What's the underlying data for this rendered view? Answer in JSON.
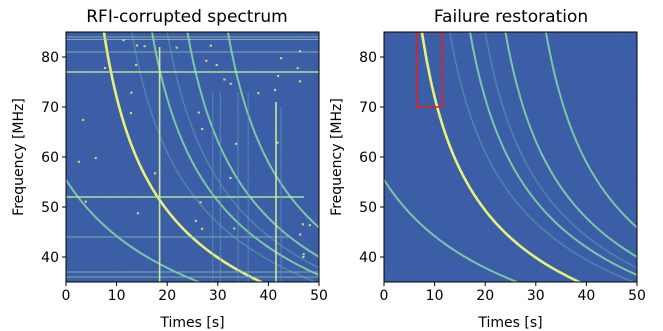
{
  "chart_data": [
    {
      "type": "heatmap",
      "title": "RFI-corrupted spectrum",
      "xlabel": "Times [s]",
      "ylabel": "Frequency [MHz]",
      "xlim": [
        0,
        50
      ],
      "ylim": [
        35,
        85
      ],
      "xticks": [
        0,
        10,
        20,
        30,
        40,
        50
      ],
      "yticks": [
        40,
        50,
        60,
        70,
        80
      ],
      "colors": {
        "background": "#3c5ea6",
        "signal": "#e6f07a",
        "faint": "#4f8fb0"
      },
      "dispersed_pulses": [
        {
          "time_at_top": 7.5,
          "time_at_50MHz": 19.5,
          "intensity": "strong"
        },
        {
          "time_at_top": 17,
          "time_at_50MHz": 31,
          "intensity": "medium"
        },
        {
          "time_at_top": 24,
          "time_at_50MHz": 38,
          "intensity": "medium"
        },
        {
          "time_at_top": 32,
          "time_at_50MHz": 46,
          "intensity": "medium"
        },
        {
          "time_at_top": -10,
          "time_at_50MHz": 4,
          "intensity": "medium"
        },
        {
          "time_at_top": 13,
          "time_at_50MHz": 27,
          "intensity": "faint"
        },
        {
          "time_at_top": 20,
          "time_at_50MHz": 34,
          "intensity": "faint"
        }
      ],
      "rfi_horizontal_MHz": [
        84,
        83.5,
        81,
        77,
        52,
        44,
        37,
        36
      ],
      "rfi_vertical_s": [
        18.5,
        41.5,
        42.5,
        29,
        30.5,
        34,
        36
      ]
    },
    {
      "type": "heatmap",
      "title": "Failure restoration",
      "xlabel": "Times [s]",
      "ylabel": "Frequency [MHz]",
      "xlim": [
        0,
        50
      ],
      "ylim": [
        35,
        85
      ],
      "xticks": [
        0,
        10,
        20,
        30,
        40,
        50
      ],
      "yticks": [
        40,
        50,
        60,
        70,
        80
      ],
      "colors": {
        "background": "#3c5ea6",
        "signal": "#e6f07a",
        "faint": "#4f8fb0",
        "highlight_box": "#e0201b"
      },
      "dispersed_pulses": [
        {
          "time_at_top": 7.5,
          "time_at_50MHz": 19.5,
          "intensity": "strong"
        },
        {
          "time_at_top": 17,
          "time_at_50MHz": 31,
          "intensity": "medium"
        },
        {
          "time_at_top": 24,
          "time_at_50MHz": 38,
          "intensity": "medium"
        },
        {
          "time_at_top": 32,
          "time_at_50MHz": 46,
          "intensity": "medium"
        },
        {
          "time_at_top": -10,
          "time_at_50MHz": 4,
          "intensity": "medium"
        },
        {
          "time_at_top": 13,
          "time_at_50MHz": 27,
          "intensity": "faint"
        },
        {
          "time_at_top": 20,
          "time_at_50MHz": 34,
          "intensity": "faint"
        }
      ],
      "highlight_box": {
        "x": [
          6.5,
          11.5
        ],
        "y": [
          70,
          85
        ]
      }
    }
  ]
}
